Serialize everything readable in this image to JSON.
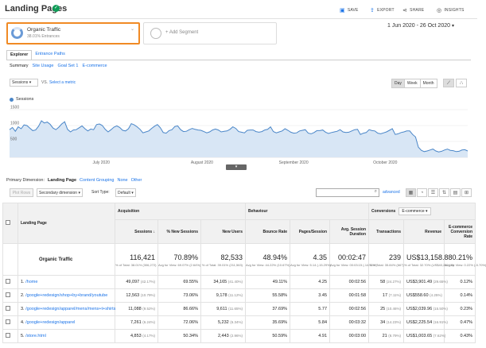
{
  "header": {
    "title": "Landing Pages",
    "actions": {
      "save": "SAVE",
      "export": "EXPORT",
      "share": "SHARE",
      "insights": "INSIGHTS"
    }
  },
  "segments": {
    "active": {
      "name": "Organic Traffic",
      "pct": "38.01% Entrances"
    },
    "add_label": "+ Add Segment"
  },
  "date_range": "1 Jun 2020 - 26 Oct 2020",
  "tabs": [
    "Explorer",
    "Entrance Paths"
  ],
  "subtabs": [
    "Summary",
    "Site Usage",
    "Goal Set 1",
    "E-commerce"
  ],
  "chart_controls": {
    "metric": "Sessions",
    "vs": "VS.",
    "select_metric": "Select a metric",
    "granularity": [
      "Day",
      "Week",
      "Month"
    ]
  },
  "chart_data": {
    "type": "line",
    "legend": "Sessions",
    "y_ticks": [
      1500,
      1000,
      500
    ],
    "x_labels": [
      "July 2020",
      "August 2020",
      "September 2020",
      "October 2020"
    ],
    "ylim": [
      0,
      1700
    ],
    "series": [
      {
        "name": "Sessions",
        "color": "#4a86c8",
        "values": [
          870,
          940,
          820,
          960,
          900,
          1020,
          1000,
          920,
          840,
          860,
          980,
          1150,
          1080,
          1110,
          1040,
          920,
          870,
          950,
          1050,
          1120,
          880,
          800,
          860,
          870,
          930,
          990,
          900,
          830,
          890,
          870,
          1030,
          1050,
          1000,
          880,
          800,
          870,
          950,
          990,
          940,
          850,
          830,
          900,
          1060,
          1020,
          960,
          880,
          770,
          800,
          830,
          910,
          980,
          1030,
          930,
          780,
          760,
          840,
          870,
          970,
          990,
          870,
          810,
          820,
          870,
          910,
          880,
          860,
          850,
          810,
          770,
          800,
          860,
          890,
          860,
          800,
          820,
          830,
          880,
          960,
          910,
          810,
          790,
          770,
          850,
          860,
          860,
          810,
          790,
          810,
          860,
          880,
          960,
          810,
          770,
          800,
          830,
          900,
          850,
          790,
          760,
          770,
          830,
          850,
          870,
          760,
          740,
          780,
          840,
          840,
          860,
          790,
          750,
          780,
          800,
          820,
          870,
          800,
          780,
          790,
          830,
          870,
          880,
          720,
          760,
          780,
          870,
          840,
          830,
          760,
          740,
          770,
          800,
          850,
          900,
          720,
          740,
          780,
          800,
          830,
          830,
          720,
          640,
          320,
          220,
          180,
          200,
          230,
          260,
          200,
          170,
          190,
          230,
          260,
          220,
          210,
          180,
          190,
          230,
          240,
          200
        ]
      }
    ]
  },
  "primary_dimension": {
    "label": "Primary Dimension:",
    "current": "Landing Page",
    "options": [
      "Content Grouping",
      "None"
    ],
    "other": "Other"
  },
  "table_controls": {
    "plot_rows": "Plot Rows",
    "secondary_dimension": "Secondary dimension",
    "sort_type_label": "Sort Type:",
    "sort_type": "Default",
    "advanced": "advanced"
  },
  "table": {
    "group_headers": {
      "dimension": "Landing Page",
      "acquisition": "Acquisition",
      "behaviour": "Behaviour",
      "conversions": "Conversions",
      "conversion_type": "E-commerce"
    },
    "columns": [
      "Sessions",
      "% New Sessions",
      "New Users",
      "Bounce Rate",
      "Pages/Session",
      "Avg. Session Duration",
      "Transactions",
      "Revenue",
      "E-commerce Conversion Rate"
    ],
    "totals": {
      "label": "Organic Traffic",
      "values": [
        "116,421",
        "70.89%",
        "82,533",
        "48.94%",
        "4.35",
        "00:02:47",
        "239",
        "US$13,158.88",
        "0.21%"
      ],
      "subs": [
        "% of Total: 38.01% (306,272)",
        "Avg for View: 69.07% (2.64%)",
        "% of Total: 39.01% (211,563)",
        "Avg for View: 44.22% (10.67%)",
        "Avg for View: 5.14 (-15.29%)",
        "Avg for View: 00:03:15 (-14.32%)",
        "% of Total: 35.84% (667)",
        "% of Total: 32.70% (US$40,250.10)",
        "Avg for View: 0.22% (-5.70%)"
      ]
    },
    "rows": [
      {
        "n": "1.",
        "page": "/home",
        "v": [
          "49,097",
          "69.55%",
          "34,165",
          "49.11%",
          "4.25",
          "00:02:56",
          "58",
          "US$3,901.49",
          "0.12%"
        ],
        "p": [
          "(42.17%)",
          "",
          "(41.40%)",
          "",
          "",
          "",
          "(24.27%)",
          "(29.65%)",
          ""
        ]
      },
      {
        "n": "2.",
        "page": "/google+redesign/shop+by+brand/youtube",
        "v": [
          "12,563",
          "73.06%",
          "9,178",
          "55.58%",
          "3.45",
          "00:01:58",
          "17",
          "US$558.60",
          "0.14%"
        ],
        "p": [
          "(10.79%)",
          "",
          "(11.12%)",
          "",
          "",
          "",
          "(7.11%)",
          "(4.25%)",
          ""
        ]
      },
      {
        "n": "3.",
        "page": "/google+redesign/apparel/mens/mens+t+shirts",
        "v": [
          "11,088",
          "86.66%",
          "9,611",
          "37.69%",
          "5.77",
          "00:02:56",
          "25",
          "US$2,039.96",
          "0.23%"
        ],
        "p": [
          "(9.52%)",
          "",
          "(11.65%)",
          "",
          "",
          "",
          "(10.46%)",
          "(15.50%)",
          ""
        ]
      },
      {
        "n": "4.",
        "page": "/google+redesign/apparel",
        "v": [
          "7,261",
          "72.06%",
          "5,232",
          "35.69%",
          "5.84",
          "00:03:32",
          "34",
          "US$2,225.54",
          "0.47%"
        ],
        "p": [
          "(6.24%)",
          "",
          "(6.34%)",
          "",
          "",
          "",
          "(14.23%)",
          "(16.91%)",
          ""
        ]
      },
      {
        "n": "5.",
        "page": "/store.html",
        "v": [
          "4,853",
          "50.34%",
          "2,443",
          "50.59%",
          "4.91",
          "00:03:00",
          "21",
          "US$1,003.65",
          "0.43%"
        ],
        "p": [
          "(4.17%)",
          "",
          "(2.96%)",
          "",
          "",
          "",
          "(8.79%)",
          "(7.62%)",
          ""
        ]
      }
    ]
  }
}
